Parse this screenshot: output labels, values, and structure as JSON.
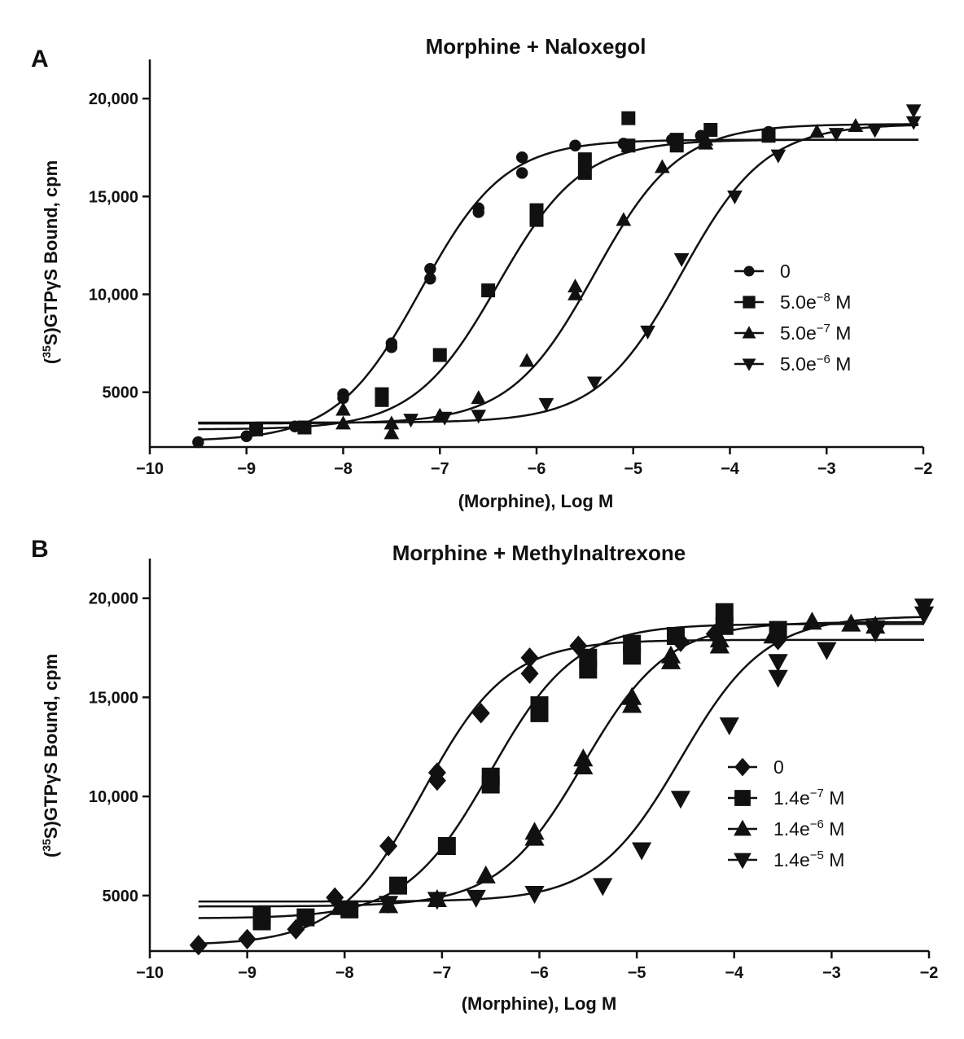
{
  "chart_data": [
    {
      "type": "scatter",
      "panel_label": "A",
      "title": "Morphine + Naloxegol",
      "xlabel": "(Morphine), Log M",
      "ylabel_prefix": "(",
      "ylabel_sup": "35",
      "ylabel_suffix": "S)GTPγS Bound, cpm",
      "xlim": [
        -10,
        -2
      ],
      "ylim": [
        2200,
        22000
      ],
      "x_ticks": [
        -10,
        -9,
        -8,
        -7,
        -6,
        -5,
        -4,
        -3,
        -2
      ],
      "x_tick_labels": [
        "−10",
        "−9",
        "−8",
        "−7",
        "−6",
        "−5",
        "−4",
        "−3",
        "−2"
      ],
      "y_ticks": [
        5000,
        10000,
        15000,
        20000
      ],
      "y_tick_labels": [
        "5000",
        "10,000",
        "15,000",
        "20,000"
      ],
      "legend_position": "right",
      "series": [
        {
          "name": "0",
          "marker": "circle",
          "fit": {
            "bottom": 2500,
            "top": 17900,
            "log_ec50": -7.2,
            "hill": 1.0
          },
          "points": [
            [
              -9.5,
              2450
            ],
            [
              -9.0,
              2750
            ],
            [
              -8.5,
              3250
            ],
            [
              -8.0,
              4900
            ],
            [
              -8.0,
              4700
            ],
            [
              -7.5,
              7300
            ],
            [
              -7.5,
              7500
            ],
            [
              -7.1,
              11300
            ],
            [
              -7.1,
              10800
            ],
            [
              -6.6,
              14200
            ],
            [
              -6.6,
              14400
            ],
            [
              -6.15,
              17000
            ],
            [
              -6.15,
              16200
            ],
            [
              -5.6,
              17600
            ],
            [
              -5.1,
              17700
            ],
            [
              -4.6,
              17900
            ],
            [
              -4.3,
              18100
            ],
            [
              -3.6,
              18300
            ]
          ]
        },
        {
          "name": "5.0e",
          "name_sup": "−8",
          "name_suffix": " M",
          "marker": "square",
          "fit": {
            "bottom": 3100,
            "top": 17900,
            "log_ec50": -6.4,
            "hill": 1.0
          },
          "points": [
            [
              -8.9,
              3100
            ],
            [
              -8.4,
              3200
            ],
            [
              -7.6,
              4600
            ],
            [
              -7.6,
              4900
            ],
            [
              -7.0,
              6900
            ],
            [
              -6.5,
              10200
            ],
            [
              -6.0,
              14300
            ],
            [
              -6.0,
              13800
            ],
            [
              -5.5,
              16200
            ],
            [
              -5.5,
              16900
            ],
            [
              -5.05,
              19000
            ],
            [
              -5.05,
              17600
            ],
            [
              -4.55,
              17600
            ],
            [
              -4.55,
              17900
            ],
            [
              -4.2,
              18400
            ],
            [
              -3.6,
              18100
            ]
          ]
        },
        {
          "name": "5.0e",
          "name_sup": "−7",
          "name_suffix": " M",
          "marker": "triangle-up",
          "fit": {
            "bottom": 3400,
            "top": 18700,
            "log_ec50": -5.4,
            "hill": 1.0
          },
          "points": [
            [
              -8.0,
              3400
            ],
            [
              -8.0,
              4100
            ],
            [
              -7.5,
              2900
            ],
            [
              -7.5,
              3400
            ],
            [
              -7.0,
              3800
            ],
            [
              -6.6,
              4700
            ],
            [
              -6.1,
              6600
            ],
            [
              -5.6,
              10000
            ],
            [
              -5.6,
              10400
            ],
            [
              -5.1,
              13800
            ],
            [
              -4.7,
              16500
            ],
            [
              -4.25,
              17700
            ],
            [
              -4.25,
              17900
            ],
            [
              -3.1,
              18300
            ],
            [
              -2.7,
              18600
            ]
          ]
        },
        {
          "name": "5.0e",
          "name_sup": "−6",
          "name_suffix": " M",
          "marker": "triangle-down",
          "fit": {
            "bottom": 3450,
            "top": 18700,
            "log_ec50": -4.5,
            "hill": 1.0
          },
          "points": [
            [
              -7.3,
              3600
            ],
            [
              -6.95,
              3700
            ],
            [
              -6.6,
              3800
            ],
            [
              -5.9,
              4400
            ],
            [
              -5.4,
              5500
            ],
            [
              -4.85,
              8100
            ],
            [
              -4.5,
              11800
            ],
            [
              -3.95,
              15000
            ],
            [
              -3.5,
              17100
            ],
            [
              -2.9,
              18200
            ],
            [
              -2.5,
              18400
            ],
            [
              -2.1,
              18800
            ],
            [
              -2.1,
              19400
            ]
          ]
        }
      ]
    },
    {
      "type": "scatter",
      "panel_label": "B",
      "title": "Morphine + Methylnaltrexone",
      "xlabel": "(Morphine), Log M",
      "ylabel_prefix": "(",
      "ylabel_sup": "35",
      "ylabel_suffix": "S)GTPγS Bound, cpm",
      "xlim": [
        -10,
        -2
      ],
      "ylim": [
        2200,
        22000
      ],
      "x_ticks": [
        -10,
        -9,
        -8,
        -7,
        -6,
        -5,
        -4,
        -3,
        -2
      ],
      "x_tick_labels": [
        "−10",
        "−9",
        "−8",
        "−7",
        "−6",
        "−5",
        "−4",
        "−3",
        "−2"
      ],
      "y_ticks": [
        5000,
        10000,
        15000,
        20000
      ],
      "y_tick_labels": [
        "5000",
        "10,000",
        "15,000",
        "20,000"
      ],
      "legend_position": "right",
      "series": [
        {
          "name": "0",
          "marker": "diamond",
          "fit": {
            "bottom": 2500,
            "top": 17900,
            "log_ec50": -7.2,
            "hill": 1.0
          },
          "points": [
            [
              -9.5,
              2500
            ],
            [
              -9.0,
              2800
            ],
            [
              -8.5,
              3300
            ],
            [
              -8.1,
              4900
            ],
            [
              -7.55,
              7500
            ],
            [
              -7.05,
              11200
            ],
            [
              -7.05,
              10800
            ],
            [
              -6.6,
              14200
            ],
            [
              -6.1,
              17000
            ],
            [
              -6.1,
              16200
            ],
            [
              -5.6,
              17600
            ],
            [
              -5.05,
              17600
            ],
            [
              -4.55,
              17800
            ],
            [
              -4.2,
              18200
            ],
            [
              -3.55,
              17900
            ]
          ]
        },
        {
          "name": "1.4e",
          "name_sup": "−7",
          "name_suffix": " M",
          "marker": "square",
          "fit": {
            "bottom": 3850,
            "top": 18700,
            "log_ec50": -6.5,
            "hill": 1.0
          },
          "points": [
            [
              -8.85,
              4000
            ],
            [
              -8.85,
              3700
            ],
            [
              -8.4,
              3900
            ],
            [
              -7.95,
              4300
            ],
            [
              -7.45,
              5500
            ],
            [
              -6.95,
              7500
            ],
            [
              -6.5,
              10600
            ],
            [
              -6.5,
              11000
            ],
            [
              -6.0,
              14200
            ],
            [
              -6.0,
              14600
            ],
            [
              -5.5,
              16400
            ],
            [
              -5.5,
              17000
            ],
            [
              -5.05,
              17100
            ],
            [
              -5.05,
              17700
            ],
            [
              -4.6,
              18100
            ],
            [
              -4.1,
              18600
            ],
            [
              -4.1,
              19300
            ],
            [
              -3.55,
              18400
            ]
          ]
        },
        {
          "name": "1.4e",
          "name_sup": "−6",
          "name_suffix": " M",
          "marker": "triangle-up",
          "fit": {
            "bottom": 4450,
            "top": 18800,
            "log_ec50": -5.55,
            "hill": 1.0
          },
          "points": [
            [
              -8.05,
              4400
            ],
            [
              -7.55,
              4500
            ],
            [
              -7.05,
              4800
            ],
            [
              -6.55,
              6000
            ],
            [
              -6.05,
              8200
            ],
            [
              -6.05,
              7900
            ],
            [
              -5.55,
              11500
            ],
            [
              -5.55,
              11900
            ],
            [
              -5.05,
              14600
            ],
            [
              -5.05,
              15000
            ],
            [
              -4.65,
              16800
            ],
            [
              -4.65,
              17100
            ],
            [
              -4.15,
              17600
            ],
            [
              -4.15,
              17900
            ],
            [
              -3.6,
              18100
            ],
            [
              -3.2,
              18800
            ],
            [
              -2.8,
              18700
            ],
            [
              -2.55,
              18600
            ]
          ]
        },
        {
          "name": "1.4e",
          "name_sup": "−5",
          "name_suffix": " M",
          "marker": "triangle-down",
          "fit": {
            "bottom": 4700,
            "top": 19100,
            "log_ec50": -4.55,
            "hill": 1.0
          },
          "points": [
            [
              -7.55,
              4600
            ],
            [
              -7.05,
              4800
            ],
            [
              -6.65,
              4900
            ],
            [
              -6.05,
              5100
            ],
            [
              -5.35,
              5500
            ],
            [
              -4.95,
              7300
            ],
            [
              -4.55,
              9900
            ],
            [
              -4.05,
              13600
            ],
            [
              -3.55,
              16000
            ],
            [
              -3.55,
              16800
            ],
            [
              -3.05,
              17400
            ],
            [
              -2.55,
              18300
            ],
            [
              -2.55,
              18500
            ],
            [
              -2.05,
              19200
            ],
            [
              -2.05,
              19600
            ]
          ]
        }
      ]
    }
  ]
}
